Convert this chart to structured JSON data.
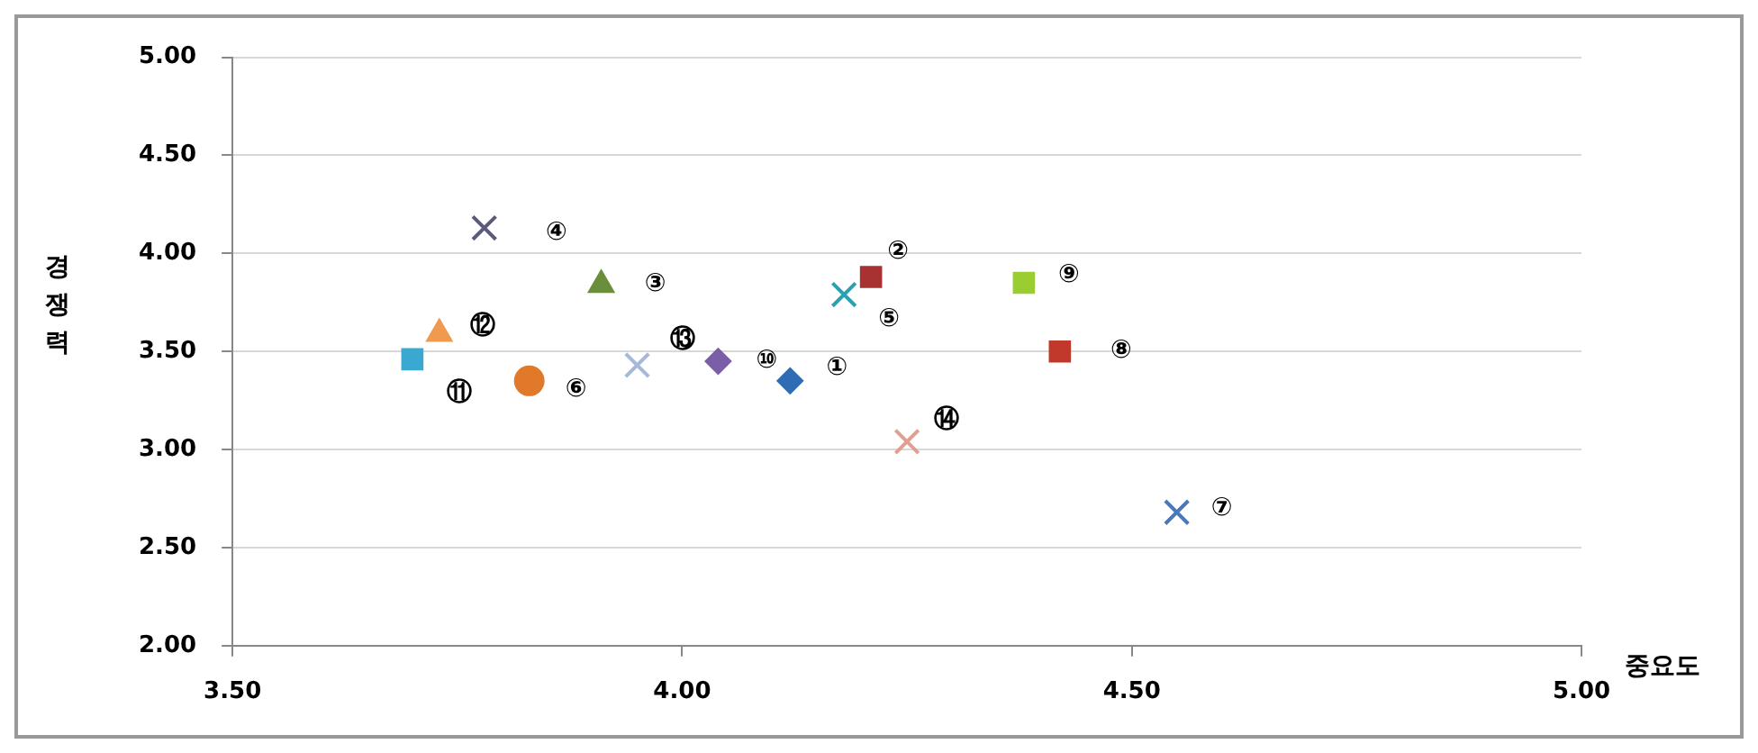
{
  "chart_data": {
    "type": "scatter",
    "xlabel": "중요도",
    "ylabel": "경쟁력",
    "xlim": [
      3.5,
      5
    ],
    "xticks": [
      {
        "value": 3.5,
        "label": "3.50"
      },
      {
        "value": 4,
        "label": "4.00"
      },
      {
        "value": 4.5,
        "label": "4.50"
      },
      {
        "value": 5,
        "label": "5.00"
      }
    ],
    "ylim": [
      2,
      5
    ],
    "yticks": [
      {
        "value": 2,
        "label": "2.00"
      },
      {
        "value": 2.5,
        "label": "2.50"
      },
      {
        "value": 3,
        "label": "3.00"
      },
      {
        "value": 3.5,
        "label": "3.50"
      },
      {
        "value": 4,
        "label": "4.00"
      },
      {
        "value": 4.5,
        "label": "4.50"
      },
      {
        "value": 5,
        "label": "5.00"
      }
    ],
    "grid": "y",
    "series": [
      {
        "color": "#2e6db4",
        "marker": "diamond",
        "x": [
          4.12
        ],
        "values": [
          3.35
        ]
      },
      {
        "color": "#a83232",
        "marker": "square",
        "x": [
          4.21
        ],
        "values": [
          3.88
        ]
      },
      {
        "color": "#6b8e3a",
        "marker": "triangle",
        "x": [
          3.91
        ],
        "values": [
          3.84
        ]
      },
      {
        "color": "#5a5a7a",
        "marker": "cross",
        "x": [
          3.78
        ],
        "values": [
          4.13
        ]
      },
      {
        "color": "#2aa0b0",
        "marker": "cross",
        "x": [
          4.18
        ],
        "values": [
          3.79
        ]
      },
      {
        "color": "#e07a2a",
        "marker": "circle",
        "x": [
          3.83
        ],
        "values": [
          3.35
        ]
      },
      {
        "color": "#4a78b8",
        "marker": "cross",
        "x": [
          4.55
        ],
        "values": [
          2.68
        ]
      },
      {
        "color": "#c0392b",
        "marker": "square",
        "x": [
          4.42
        ],
        "values": [
          3.5
        ]
      },
      {
        "color": "#9acd32",
        "marker": "square",
        "x": [
          4.38
        ],
        "values": [
          3.85
        ]
      },
      {
        "color": "#7b5ea8",
        "marker": "diamond",
        "x": [
          4.04
        ],
        "values": [
          3.45
        ]
      },
      {
        "color": "#3aa8d0",
        "marker": "square",
        "x": [
          3.7
        ],
        "values": [
          3.46
        ]
      },
      {
        "color": "#f09a50",
        "marker": "triangle",
        "x": [
          3.73
        ],
        "values": [
          3.59
        ]
      },
      {
        "color": "#a8b8d8",
        "marker": "cross",
        "x": [
          3.95
        ],
        "values": [
          3.43
        ]
      },
      {
        "color": "#e0a090",
        "marker": "cross",
        "x": [
          4.25
        ],
        "values": [
          3.04
        ]
      }
    ],
    "annotations": [
      {
        "text": "①",
        "x": 4.12,
        "y": 3.35
      },
      {
        "text": "②",
        "x": 4.21,
        "y": 3.88
      },
      {
        "text": "③",
        "x": 3.91,
        "y": 3.84
      },
      {
        "text": "④",
        "x": 3.78,
        "y": 4.13
      },
      {
        "text": "⑤",
        "x": 4.18,
        "y": 3.79
      },
      {
        "text": "⑥",
        "x": 3.83,
        "y": 3.35
      },
      {
        "text": "⑦",
        "x": 4.55,
        "y": 2.68
      },
      {
        "text": "⑧",
        "x": 4.42,
        "y": 3.5
      },
      {
        "text": "⑨",
        "x": 4.38,
        "y": 3.85
      },
      {
        "text": "⑩",
        "x": 4.04,
        "y": 3.45
      },
      {
        "text": "⑪",
        "x": 3.7,
        "y": 3.46
      },
      {
        "text": "⑫",
        "x": 3.73,
        "y": 3.59
      },
      {
        "text": "⑬",
        "x": 3.95,
        "y": 3.43
      },
      {
        "text": "⑭",
        "x": 4.25,
        "y": 3.04
      }
    ]
  }
}
